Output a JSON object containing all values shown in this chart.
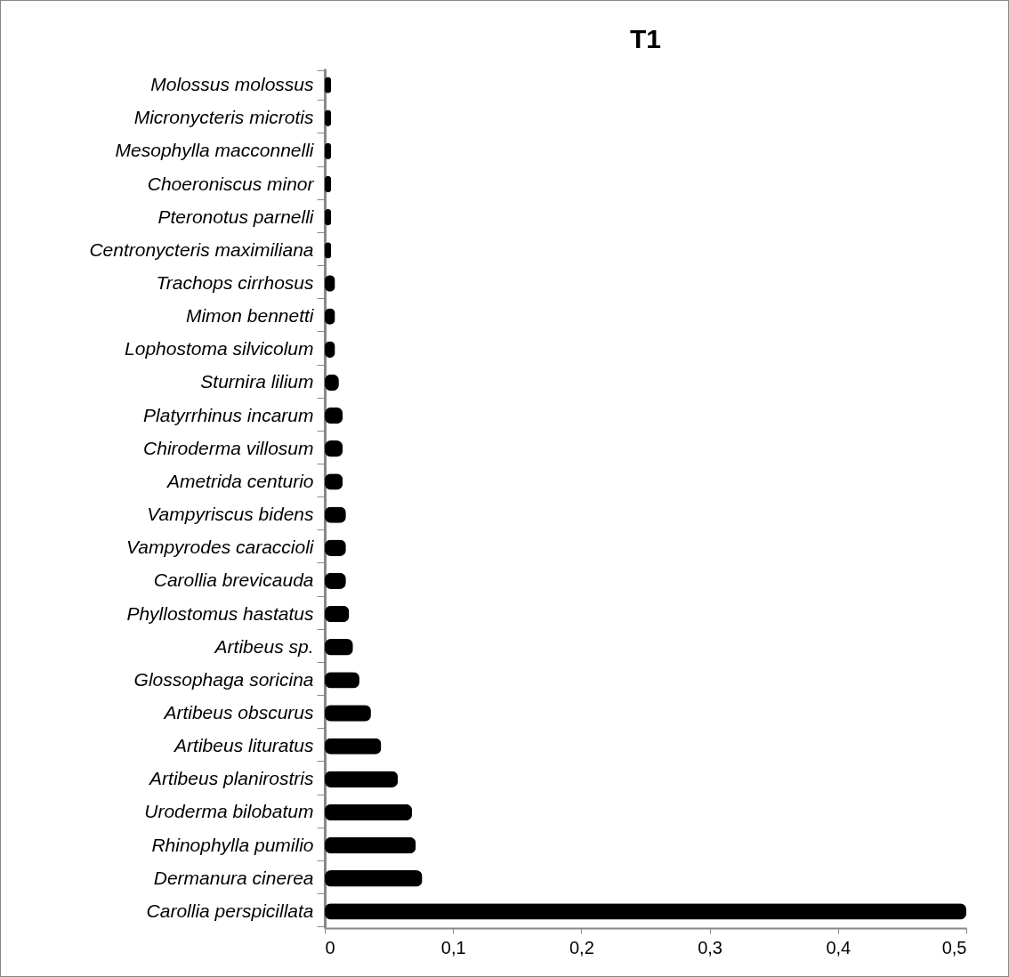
{
  "chart_data": {
    "type": "bar",
    "title": "T1",
    "orientation": "horizontal",
    "color": "#000000",
    "categories": [
      "Molossus molossus",
      "Micronycteris microtis",
      "Mesophylla macconnelli",
      "Choeroniscus minor",
      "Pteronotus parnelli",
      "Centronycteris maximiliana",
      "Trachops cirrhosus",
      "Mimon bennetti",
      "Lophostoma silvicolum",
      "Sturnira lilium",
      "Platyrrhinus incarum",
      "Chiroderma villosum",
      "Ametrida centurio",
      "Vampyriscus bidens",
      "Vampyrodes caraccioli",
      "Carollia brevicauda",
      "Phyllostomus hastatus",
      "Artibeus sp.",
      "Glossophaga soricina",
      "Artibeus obscurus",
      "Artibeus lituratus",
      "Artibeus planirostris",
      "Uroderma bilobatum",
      "Rhinophylla pumilio",
      "Dermanura cinerea",
      "Carollia perspicillata"
    ],
    "values": [
      0.005,
      0.005,
      0.005,
      0.005,
      0.005,
      0.005,
      0.008,
      0.008,
      0.008,
      0.011,
      0.014,
      0.014,
      0.014,
      0.0165,
      0.0165,
      0.0165,
      0.019,
      0.022,
      0.027,
      0.036,
      0.044,
      0.057,
      0.068,
      0.071,
      0.076,
      0.5
    ],
    "xlim": [
      0,
      0.5
    ],
    "xticks": [
      0,
      {
        "value": 0.1,
        "label": "0,1"
      },
      {
        "value": 0.2,
        "label": "0,2"
      },
      {
        "value": 0.3,
        "label": "0,3"
      },
      {
        "value": 0.4,
        "label": "0,4"
      },
      {
        "value": 0.5,
        "label": "0,5"
      }
    ],
    "grid": false
  }
}
